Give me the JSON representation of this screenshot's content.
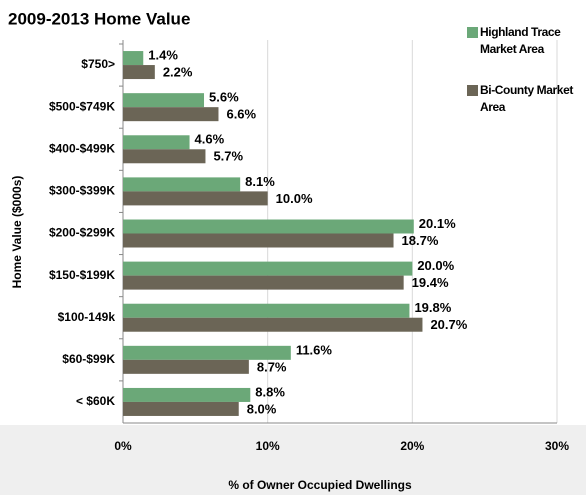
{
  "chart_data": {
    "type": "hbar",
    "title": "2009-2013  Home Value",
    "x_label": "% of Owner Occupied Dwellings",
    "y_label": "Home Value ($000s)",
    "categories": [
      "$750>",
      "$500-$749K",
      "$400-$499K",
      "$300-$399K",
      "$200-$299K",
      "$150-$199K",
      "$100-149k",
      "$60-$99K",
      "< $60K"
    ],
    "series": [
      {
        "name": "Highland Trace Market Area",
        "color": "#6ba878",
        "values": [
          1.4,
          5.6,
          4.6,
          8.1,
          20.1,
          20.0,
          19.8,
          11.6,
          8.8
        ],
        "value_labels": [
          "1.4%",
          "5.6%",
          "4.6%",
          "8.1%",
          "20.1%",
          "20.0%",
          "19.8%",
          "11.6%",
          "8.8%"
        ]
      },
      {
        "name": "Bi-County Market Area",
        "color": "#6b6556",
        "values": [
          2.2,
          6.6,
          5.7,
          10.0,
          18.7,
          19.4,
          20.7,
          8.7,
          8.0
        ],
        "value_labels": [
          "2.2%",
          "6.6%",
          "5.7%",
          "10.0%",
          "18.7%",
          "19.4%",
          "20.7%",
          "8.7%",
          "8.0%"
        ]
      }
    ],
    "xlim": [
      0,
      30
    ],
    "xticks": [
      {
        "value": 0,
        "label": "0%"
      },
      {
        "value": 10,
        "label": "10%"
      },
      {
        "value": 20,
        "label": "20%"
      },
      {
        "value": 30,
        "label": "30%"
      }
    ],
    "grid": true,
    "legend": "top-right"
  }
}
